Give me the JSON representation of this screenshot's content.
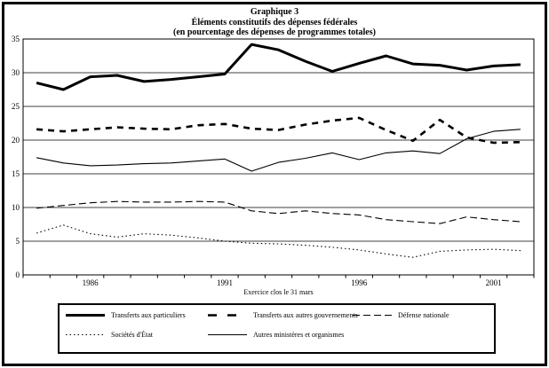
{
  "title": {
    "line1": "Graphique 3",
    "line2": "Éléments constitutifs des dépenses fédérales",
    "line3": "(en pourcentage des dépenses de programmes totales)"
  },
  "chart_data": {
    "type": "line",
    "x": [
      1984,
      1985,
      1986,
      1987,
      1988,
      1989,
      1990,
      1991,
      1992,
      1993,
      1994,
      1995,
      1996,
      1997,
      1998,
      1999,
      2000,
      2001,
      2002
    ],
    "series": [
      {
        "name": "Transferts aux particuliers",
        "style": "thick-solid",
        "values": [
          28.5,
          27.5,
          29.4,
          29.6,
          28.7,
          29.0,
          29.4,
          29.8,
          34.2,
          33.4,
          31.7,
          30.2,
          31.4,
          32.5,
          31.3,
          31.1,
          30.4,
          31.0,
          31.2
        ]
      },
      {
        "name": "Transferts aux autres gouvernements",
        "style": "thick-dashed",
        "values": [
          21.6,
          21.3,
          21.6,
          21.9,
          21.7,
          21.6,
          22.2,
          22.4,
          21.7,
          21.5,
          22.3,
          22.9,
          23.3,
          21.5,
          19.9,
          23.0,
          20.4,
          19.6,
          19.7
        ]
      },
      {
        "name": "Défense nationale",
        "style": "thin-dashed",
        "values": [
          9.9,
          10.3,
          10.7,
          10.9,
          10.8,
          10.8,
          10.9,
          10.8,
          9.5,
          9.1,
          9.5,
          9.1,
          8.9,
          8.2,
          7.9,
          7.6,
          8.6,
          8.2,
          7.9
        ]
      },
      {
        "name": "Sociétés d'État",
        "style": "dotted",
        "values": [
          6.2,
          7.4,
          6.1,
          5.6,
          6.1,
          5.9,
          5.5,
          5.0,
          4.7,
          4.6,
          4.4,
          4.1,
          3.7,
          3.1,
          2.6,
          3.5,
          3.7,
          3.8,
          3.6
        ]
      },
      {
        "name": "Autres ministères et organismes",
        "style": "thin-solid",
        "values": [
          17.4,
          16.6,
          16.2,
          16.3,
          16.5,
          16.6,
          16.9,
          17.2,
          15.4,
          16.7,
          17.3,
          18.1,
          17.1,
          18.1,
          18.4,
          18.0,
          20.2,
          21.3,
          21.6
        ]
      }
    ],
    "xlabel": "Exercice clos le 31 mars",
    "ylabel": "",
    "ylim": [
      0,
      35
    ],
    "yticks": [
      0,
      5,
      10,
      15,
      20,
      25,
      30,
      35
    ],
    "xtick_years": [
      1986,
      1991,
      1996,
      2001
    ],
    "xtick_labels": [
      "1986",
      "1991",
      "1996",
      "2001"
    ],
    "grid": true,
    "legend_position": "bottom-box",
    "colors": {
      "line": "#000000",
      "background": "#ffffff"
    }
  }
}
